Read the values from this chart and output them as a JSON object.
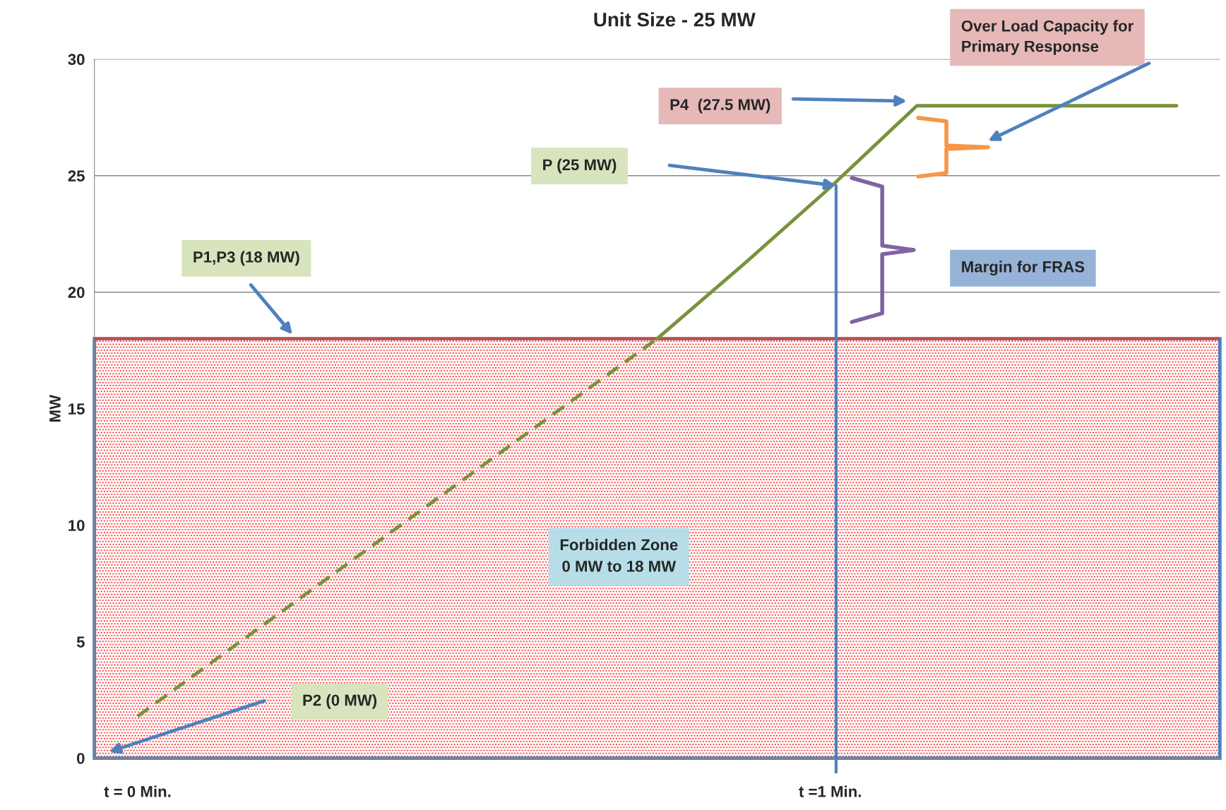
{
  "chart_data": {
    "type": "line",
    "title": "Unit Size - 25 MW",
    "ylabel": "MW",
    "categories": [
      "t = 0 Min.",
      null,
      null,
      null,
      null,
      null,
      null,
      null,
      "t =1 Min.",
      null,
      null,
      null,
      null
    ],
    "series": [
      {
        "color": "#77933c",
        "line_style": "dashed",
        "values": [
          1.8,
          4.5,
          7.2,
          9.9,
          12.6,
          15.3,
          18,
          null,
          null,
          null,
          null,
          null,
          null
        ]
      },
      {
        "color": "#77933c",
        "line_style": "solid",
        "values": [
          null,
          null,
          null,
          null,
          null,
          null,
          18,
          21.2,
          24.5,
          28,
          28,
          28,
          28
        ]
      }
    ],
    "ylim": [
      0,
      30
    ],
    "yticks": [
      0,
      5,
      10,
      15,
      20,
      25,
      30
    ],
    "grid": "y",
    "legend": false,
    "marker": "none",
    "ref_lines": [
      {
        "axis": "y",
        "value": 18,
        "color": "#c0504d"
      }
    ],
    "bands": [
      {
        "axis": "y",
        "from": 0,
        "to": 18,
        "label": "Forbidden Zone\n0 MW to 18 MW",
        "color": "#ff3333"
      }
    ],
    "annotations": [
      "P4  (27.5 MW)",
      "P (25 MW)",
      "P1,P3 (18 MW)",
      "P2 (0 MW)",
      "Over Load Capacity for\nPrimary Response",
      "Margin for FRAS"
    ]
  }
}
